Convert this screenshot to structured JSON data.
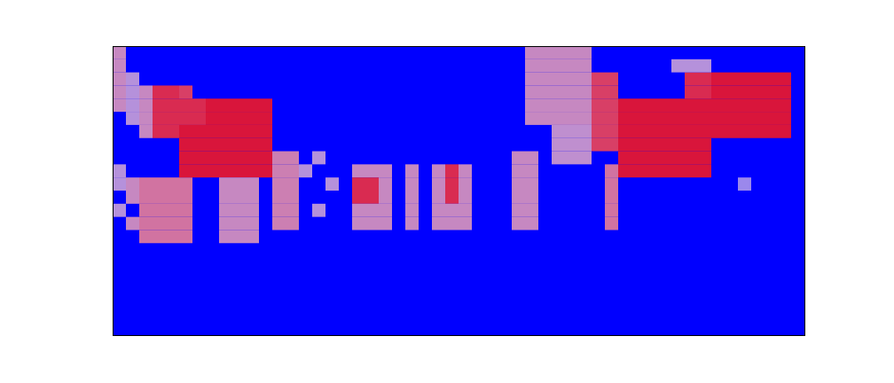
{
  "chart_data": {
    "type": "heatmap",
    "tick_labels": false,
    "grid": false,
    "xlim": [
      0,
      52
    ],
    "ylim": [
      0,
      22
    ],
    "zlim": [
      0,
      1
    ],
    "cells": [
      [
        0,
        21,
        0.6
      ],
      [
        0,
        20,
        0.6
      ],
      [
        0,
        19,
        0.6
      ],
      [
        0,
        18,
        0.6
      ],
      [
        0,
        17,
        0.6
      ],
      [
        1,
        19,
        0.5
      ],
      [
        1,
        18,
        0.5
      ],
      [
        1,
        17,
        0.5
      ],
      [
        1,
        16,
        0.5
      ],
      [
        0,
        12,
        0.5
      ],
      [
        0,
        11,
        0.5
      ],
      [
        0,
        9,
        0.5
      ],
      [
        1,
        11,
        0.6
      ],
      [
        1,
        10,
        0.6
      ],
      [
        1,
        8,
        0.6
      ],
      [
        2,
        18,
        0.6
      ],
      [
        2,
        17,
        0.6
      ],
      [
        2,
        16,
        0.6
      ],
      [
        2,
        15,
        0.6
      ],
      [
        3,
        18,
        0.9
      ],
      [
        3,
        17,
        0.9
      ],
      [
        3,
        16,
        0.9
      ],
      [
        3,
        15,
        0.9
      ],
      [
        4,
        18,
        0.9
      ],
      [
        4,
        17,
        0.9
      ],
      [
        4,
        16,
        0.9
      ],
      [
        4,
        15,
        0.9
      ],
      [
        5,
        18,
        0.85
      ],
      [
        2,
        11,
        0.7
      ],
      [
        2,
        10,
        0.7
      ],
      [
        2,
        9,
        0.7
      ],
      [
        2,
        8,
        0.7
      ],
      [
        2,
        7,
        0.7
      ],
      [
        3,
        11,
        0.7
      ],
      [
        3,
        10,
        0.7
      ],
      [
        3,
        9,
        0.7
      ],
      [
        3,
        8,
        0.7
      ],
      [
        3,
        7,
        0.7
      ],
      [
        4,
        11,
        0.7
      ],
      [
        4,
        10,
        0.7
      ],
      [
        4,
        9,
        0.7
      ],
      [
        4,
        8,
        0.7
      ],
      [
        4,
        7,
        0.7
      ],
      [
        5,
        11,
        0.7
      ],
      [
        5,
        10,
        0.7
      ],
      [
        5,
        9,
        0.7
      ],
      [
        5,
        8,
        0.7
      ],
      [
        5,
        7,
        0.7
      ],
      [
        5,
        17,
        0.9
      ],
      [
        5,
        16,
        0.9
      ],
      [
        5,
        15,
        0.95
      ],
      [
        5,
        14,
        0.95
      ],
      [
        5,
        13,
        0.95
      ],
      [
        5,
        12,
        0.95
      ],
      [
        6,
        17,
        0.9
      ],
      [
        6,
        16,
        0.9
      ],
      [
        6,
        15,
        0.95
      ],
      [
        6,
        14,
        0.95
      ],
      [
        6,
        13,
        0.95
      ],
      [
        6,
        12,
        0.95
      ],
      [
        7,
        17,
        0.95
      ],
      [
        7,
        16,
        0.95
      ],
      [
        7,
        15,
        0.95
      ],
      [
        7,
        14,
        0.95
      ],
      [
        7,
        13,
        0.95
      ],
      [
        7,
        12,
        0.95
      ],
      [
        8,
        17,
        0.95
      ],
      [
        8,
        16,
        0.95
      ],
      [
        8,
        15,
        0.95
      ],
      [
        8,
        14,
        0.95
      ],
      [
        8,
        13,
        0.95
      ],
      [
        8,
        12,
        0.95
      ],
      [
        9,
        17,
        0.95
      ],
      [
        9,
        16,
        0.95
      ],
      [
        9,
        15,
        0.95
      ],
      [
        9,
        14,
        0.95
      ],
      [
        9,
        13,
        0.95
      ],
      [
        9,
        12,
        0.95
      ],
      [
        10,
        17,
        0.95
      ],
      [
        10,
        16,
        0.95
      ],
      [
        10,
        15,
        0.95
      ],
      [
        10,
        14,
        0.95
      ],
      [
        10,
        13,
        0.95
      ],
      [
        10,
        12,
        0.95
      ],
      [
        11,
        17,
        0.95
      ],
      [
        11,
        16,
        0.95
      ],
      [
        11,
        15,
        0.95
      ],
      [
        11,
        14,
        0.95
      ],
      [
        11,
        13,
        0.95
      ],
      [
        11,
        12,
        0.95
      ],
      [
        8,
        11,
        0.6
      ],
      [
        8,
        10,
        0.6
      ],
      [
        8,
        9,
        0.6
      ],
      [
        8,
        8,
        0.6
      ],
      [
        8,
        7,
        0.6
      ],
      [
        9,
        11,
        0.6
      ],
      [
        9,
        10,
        0.6
      ],
      [
        9,
        9,
        0.6
      ],
      [
        9,
        8,
        0.6
      ],
      [
        9,
        7,
        0.6
      ],
      [
        10,
        11,
        0.6
      ],
      [
        10,
        10,
        0.6
      ],
      [
        10,
        9,
        0.6
      ],
      [
        10,
        8,
        0.6
      ],
      [
        10,
        7,
        0.6
      ],
      [
        12,
        13,
        0.65
      ],
      [
        12,
        12,
        0.65
      ],
      [
        12,
        11,
        0.65
      ],
      [
        12,
        10,
        0.65
      ],
      [
        12,
        9,
        0.65
      ],
      [
        12,
        8,
        0.65
      ],
      [
        13,
        13,
        0.65
      ],
      [
        13,
        12,
        0.65
      ],
      [
        13,
        11,
        0.65
      ],
      [
        13,
        10,
        0.65
      ],
      [
        13,
        9,
        0.65
      ],
      [
        13,
        8,
        0.65
      ],
      [
        14,
        12,
        0.5
      ],
      [
        15,
        13,
        0.5
      ],
      [
        16,
        11,
        0.5
      ],
      [
        15,
        9,
        0.5
      ],
      [
        18,
        12,
        0.6
      ],
      [
        18,
        11,
        0.9
      ],
      [
        18,
        10,
        0.9
      ],
      [
        18,
        9,
        0.6
      ],
      [
        18,
        8,
        0.6
      ],
      [
        19,
        12,
        0.6
      ],
      [
        19,
        11,
        0.9
      ],
      [
        19,
        10,
        0.9
      ],
      [
        19,
        9,
        0.6
      ],
      [
        19,
        8,
        0.6
      ],
      [
        20,
        12,
        0.6
      ],
      [
        20,
        11,
        0.6
      ],
      [
        20,
        10,
        0.6
      ],
      [
        20,
        9,
        0.6
      ],
      [
        20,
        8,
        0.6
      ],
      [
        22,
        12,
        0.6
      ],
      [
        22,
        11,
        0.6
      ],
      [
        22,
        10,
        0.6
      ],
      [
        22,
        9,
        0.6
      ],
      [
        22,
        8,
        0.6
      ],
      [
        24,
        12,
        0.6
      ],
      [
        24,
        11,
        0.6
      ],
      [
        24,
        10,
        0.6
      ],
      [
        24,
        9,
        0.6
      ],
      [
        24,
        8,
        0.6
      ],
      [
        25,
        12,
        0.9
      ],
      [
        25,
        11,
        0.9
      ],
      [
        25,
        10,
        0.9
      ],
      [
        25,
        9,
        0.6
      ],
      [
        25,
        8,
        0.6
      ],
      [
        26,
        12,
        0.6
      ],
      [
        26,
        11,
        0.6
      ],
      [
        26,
        10,
        0.6
      ],
      [
        26,
        9,
        0.6
      ],
      [
        26,
        8,
        0.6
      ],
      [
        30,
        13,
        0.6
      ],
      [
        30,
        12,
        0.6
      ],
      [
        30,
        11,
        0.6
      ],
      [
        30,
        10,
        0.6
      ],
      [
        30,
        9,
        0.6
      ],
      [
        30,
        8,
        0.6
      ],
      [
        31,
        13,
        0.6
      ],
      [
        31,
        12,
        0.6
      ],
      [
        31,
        11,
        0.6
      ],
      [
        31,
        10,
        0.6
      ],
      [
        31,
        9,
        0.6
      ],
      [
        31,
        8,
        0.6
      ],
      [
        31,
        21,
        0.6
      ],
      [
        31,
        20,
        0.6
      ],
      [
        31,
        19,
        0.6
      ],
      [
        31,
        18,
        0.6
      ],
      [
        31,
        17,
        0.6
      ],
      [
        31,
        16,
        0.6
      ],
      [
        32,
        21,
        0.6
      ],
      [
        32,
        20,
        0.6
      ],
      [
        32,
        19,
        0.6
      ],
      [
        32,
        18,
        0.6
      ],
      [
        32,
        17,
        0.6
      ],
      [
        32,
        16,
        0.6
      ],
      [
        33,
        21,
        0.6
      ],
      [
        33,
        20,
        0.6
      ],
      [
        33,
        19,
        0.6
      ],
      [
        33,
        18,
        0.6
      ],
      [
        33,
        17,
        0.6
      ],
      [
        33,
        16,
        0.6
      ],
      [
        34,
        21,
        0.6
      ],
      [
        34,
        20,
        0.6
      ],
      [
        34,
        19,
        0.6
      ],
      [
        34,
        18,
        0.6
      ],
      [
        34,
        17,
        0.6
      ],
      [
        34,
        16,
        0.6
      ],
      [
        35,
        21,
        0.6
      ],
      [
        35,
        20,
        0.6
      ],
      [
        35,
        19,
        0.6
      ],
      [
        35,
        18,
        0.6
      ],
      [
        35,
        17,
        0.6
      ],
      [
        35,
        16,
        0.6
      ],
      [
        33,
        15,
        0.55
      ],
      [
        33,
        14,
        0.55
      ],
      [
        33,
        13,
        0.55
      ],
      [
        34,
        15,
        0.55
      ],
      [
        34,
        14,
        0.55
      ],
      [
        34,
        13,
        0.55
      ],
      [
        35,
        15,
        0.55
      ],
      [
        35,
        14,
        0.55
      ],
      [
        35,
        13,
        0.55
      ],
      [
        36,
        19,
        0.85
      ],
      [
        36,
        18,
        0.85
      ],
      [
        36,
        17,
        0.85
      ],
      [
        36,
        16,
        0.85
      ],
      [
        36,
        15,
        0.85
      ],
      [
        36,
        14,
        0.85
      ],
      [
        37,
        19,
        0.85
      ],
      [
        37,
        18,
        0.85
      ],
      [
        37,
        17,
        0.85
      ],
      [
        37,
        16,
        0.85
      ],
      [
        37,
        15,
        0.85
      ],
      [
        37,
        14,
        0.85
      ],
      [
        37,
        12,
        0.7
      ],
      [
        37,
        11,
        0.7
      ],
      [
        37,
        10,
        0.7
      ],
      [
        37,
        9,
        0.7
      ],
      [
        37,
        8,
        0.7
      ],
      [
        38,
        17,
        0.95
      ],
      [
        38,
        16,
        0.95
      ],
      [
        38,
        15,
        0.95
      ],
      [
        38,
        14,
        0.95
      ],
      [
        38,
        13,
        0.95
      ],
      [
        38,
        12,
        0.95
      ],
      [
        39,
        17,
        0.95
      ],
      [
        39,
        16,
        0.95
      ],
      [
        39,
        15,
        0.95
      ],
      [
        39,
        14,
        0.95
      ],
      [
        39,
        13,
        0.95
      ],
      [
        39,
        12,
        0.95
      ],
      [
        40,
        17,
        0.95
      ],
      [
        40,
        16,
        0.95
      ],
      [
        40,
        15,
        0.95
      ],
      [
        40,
        14,
        0.95
      ],
      [
        40,
        13,
        0.95
      ],
      [
        40,
        12,
        0.95
      ],
      [
        41,
        17,
        0.95
      ],
      [
        41,
        16,
        0.95
      ],
      [
        41,
        15,
        0.95
      ],
      [
        41,
        14,
        0.95
      ],
      [
        41,
        13,
        0.95
      ],
      [
        41,
        12,
        0.95
      ],
      [
        42,
        17,
        0.95
      ],
      [
        42,
        16,
        0.95
      ],
      [
        42,
        15,
        0.95
      ],
      [
        42,
        14,
        0.95
      ],
      [
        42,
        13,
        0.95
      ],
      [
        42,
        12,
        0.95
      ],
      [
        43,
        17,
        0.95
      ],
      [
        43,
        16,
        0.95
      ],
      [
        43,
        15,
        0.95
      ],
      [
        43,
        14,
        0.95
      ],
      [
        43,
        13,
        0.95
      ],
      [
        43,
        12,
        0.95
      ],
      [
        44,
        17,
        0.95
      ],
      [
        44,
        16,
        0.95
      ],
      [
        44,
        15,
        0.95
      ],
      [
        44,
        14,
        0.95
      ],
      [
        44,
        13,
        0.95
      ],
      [
        44,
        12,
        0.95
      ],
      [
        43,
        19,
        0.9
      ],
      [
        43,
        18,
        0.9
      ],
      [
        44,
        19,
        0.9
      ],
      [
        44,
        18,
        0.9
      ],
      [
        42,
        20,
        0.5
      ],
      [
        43,
        20,
        0.5
      ],
      [
        44,
        20,
        0.5
      ],
      [
        45,
        19,
        0.95
      ],
      [
        45,
        18,
        0.95
      ],
      [
        45,
        17,
        0.95
      ],
      [
        45,
        16,
        0.95
      ],
      [
        45,
        15,
        0.95
      ],
      [
        46,
        19,
        0.95
      ],
      [
        46,
        18,
        0.95
      ],
      [
        46,
        17,
        0.95
      ],
      [
        46,
        16,
        0.95
      ],
      [
        46,
        15,
        0.95
      ],
      [
        47,
        19,
        0.95
      ],
      [
        47,
        18,
        0.95
      ],
      [
        47,
        17,
        0.95
      ],
      [
        47,
        16,
        0.95
      ],
      [
        47,
        15,
        0.95
      ],
      [
        48,
        19,
        0.95
      ],
      [
        48,
        18,
        0.95
      ],
      [
        48,
        17,
        0.95
      ],
      [
        48,
        16,
        0.95
      ],
      [
        48,
        15,
        0.95
      ],
      [
        49,
        19,
        0.95
      ],
      [
        49,
        18,
        0.95
      ],
      [
        49,
        17,
        0.95
      ],
      [
        49,
        16,
        0.95
      ],
      [
        49,
        15,
        0.95
      ],
      [
        50,
        19,
        0.95
      ],
      [
        50,
        18,
        0.95
      ],
      [
        50,
        17,
        0.95
      ],
      [
        50,
        16,
        0.95
      ],
      [
        50,
        15,
        0.95
      ],
      [
        47,
        11,
        0.4
      ]
    ]
  }
}
